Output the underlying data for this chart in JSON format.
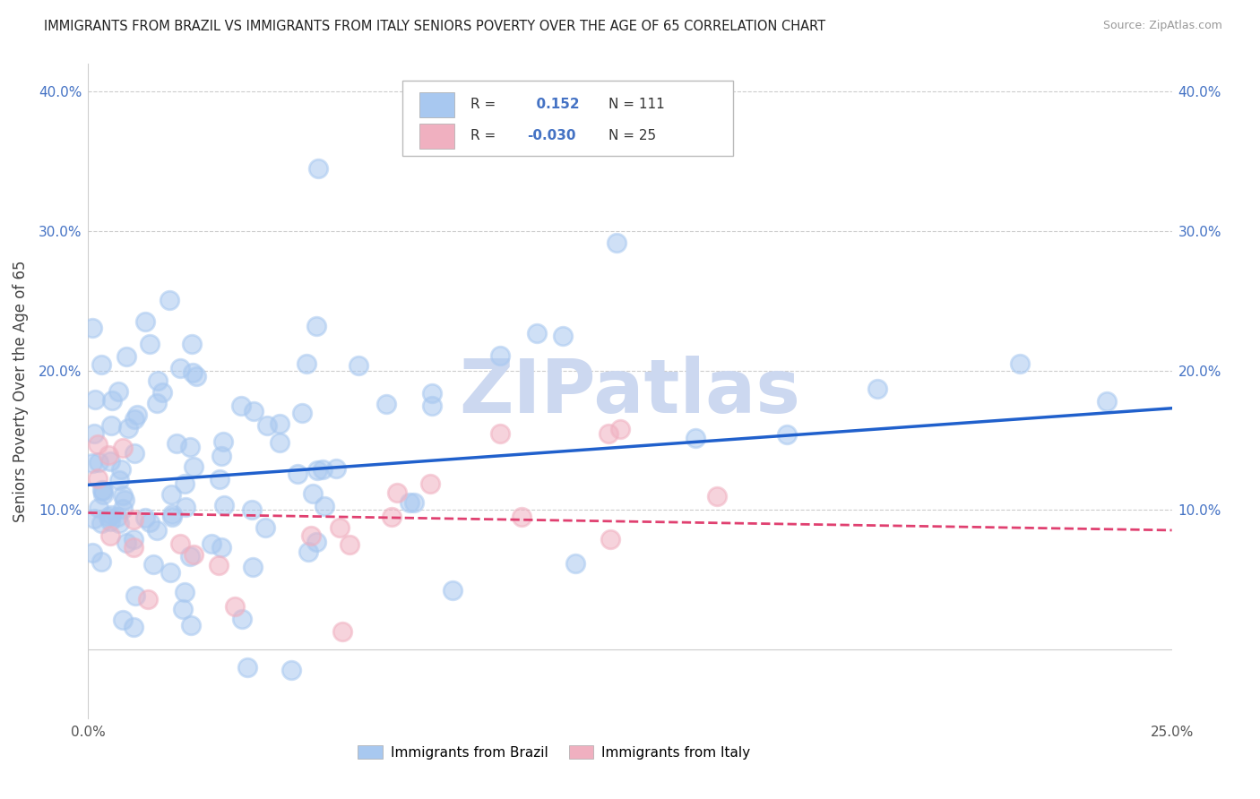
{
  "title": "IMMIGRANTS FROM BRAZIL VS IMMIGRANTS FROM ITALY SENIORS POVERTY OVER THE AGE OF 65 CORRELATION CHART",
  "source": "Source: ZipAtlas.com",
  "ylabel": "Seniors Poverty Over the Age of 65",
  "xlim": [
    0.0,
    0.25
  ],
  "ylim": [
    -0.05,
    0.42
  ],
  "xtick_positions": [
    0.0,
    0.05,
    0.1,
    0.15,
    0.2,
    0.25
  ],
  "xtick_labels": [
    "0.0%",
    "",
    "",
    "",
    "",
    "25.0%"
  ],
  "ytick_positions": [
    0.0,
    0.1,
    0.2,
    0.3,
    0.4
  ],
  "ytick_labels": [
    "",
    "10.0%",
    "20.0%",
    "30.0%",
    "40.0%"
  ],
  "brazil_R": 0.152,
  "brazil_N": 111,
  "italy_R": -0.03,
  "italy_N": 25,
  "brazil_color": "#a8c8f0",
  "italy_color": "#f0b0c0",
  "brazil_line_color": "#2060cc",
  "italy_line_color": "#e04070",
  "background_color": "#ffffff",
  "watermark": "ZIPatlas",
  "watermark_color": "#ccd8f0",
  "grid_color": "#cccccc",
  "legend_labels": [
    "Immigrants from Brazil",
    "Immigrants from Italy"
  ],
  "brazil_line_intercept": 0.118,
  "brazil_line_slope": 0.22,
  "italy_line_intercept": 0.098,
  "italy_line_slope": -0.05
}
